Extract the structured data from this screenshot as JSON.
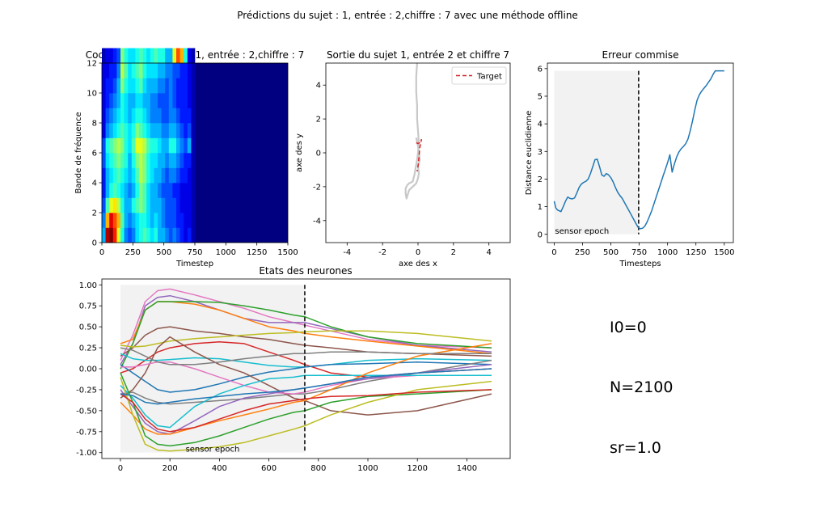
{
  "suptitle": "Prédictions du sujet : 1, entrée : 2,chiffre : 7 avec une méthode offline",
  "chart_data": [
    {
      "id": "cochleogram",
      "type": "heatmap",
      "title": "Cocleogram du sujet : 1, entrée : 2,chiffre : 7",
      "xlabel": "Timestep",
      "ylabel": "Bande de fréquence",
      "xlim": [
        0,
        1500
      ],
      "ylim": [
        0,
        12
      ],
      "xticks": [
        0,
        250,
        500,
        750,
        1000,
        1250,
        1500
      ],
      "yticks": [
        0,
        2,
        4,
        6,
        8,
        10,
        12
      ],
      "colormap": "jet",
      "time_bins": [
        0,
        30,
        60,
        90,
        120,
        150,
        180,
        210,
        240,
        270,
        300,
        330,
        360,
        390,
        420,
        450,
        480,
        510,
        540,
        570,
        600,
        630,
        660,
        690,
        720
      ],
      "bin_width": 30,
      "values": [
        [
          0.3,
          0.95,
          1.0,
          0.85,
          0.6,
          0.4,
          0.25,
          0.2,
          0.25,
          0.35,
          0.4,
          0.45,
          0.4,
          0.35,
          0.4,
          0.3,
          0.3,
          0.25,
          0.2,
          0.25,
          0.2,
          0.15,
          0.1,
          0.15,
          0.05
        ],
        [
          0.25,
          0.7,
          0.9,
          0.8,
          0.7,
          0.45,
          0.3,
          0.25,
          0.3,
          0.35,
          0.4,
          0.4,
          0.35,
          0.3,
          0.35,
          0.3,
          0.25,
          0.2,
          0.2,
          0.2,
          0.15,
          0.15,
          0.1,
          0.1,
          0.05
        ],
        [
          0.2,
          0.45,
          0.6,
          0.65,
          0.55,
          0.4,
          0.3,
          0.3,
          0.4,
          0.45,
          0.5,
          0.45,
          0.35,
          0.3,
          0.3,
          0.3,
          0.25,
          0.2,
          0.2,
          0.2,
          0.15,
          0.1,
          0.1,
          0.1,
          0.05
        ],
        [
          0.15,
          0.3,
          0.4,
          0.45,
          0.4,
          0.35,
          0.3,
          0.25,
          0.3,
          0.4,
          0.5,
          0.45,
          0.35,
          0.3,
          0.3,
          0.25,
          0.2,
          0.2,
          0.2,
          0.15,
          0.15,
          0.1,
          0.1,
          0.1,
          0.05
        ],
        [
          0.15,
          0.3,
          0.35,
          0.4,
          0.45,
          0.4,
          0.35,
          0.3,
          0.35,
          0.45,
          0.55,
          0.5,
          0.4,
          0.35,
          0.3,
          0.3,
          0.25,
          0.2,
          0.25,
          0.25,
          0.2,
          0.15,
          0.15,
          0.1,
          0.05
        ],
        [
          0.2,
          0.35,
          0.4,
          0.45,
          0.5,
          0.45,
          0.4,
          0.3,
          0.4,
          0.5,
          0.55,
          0.5,
          0.4,
          0.35,
          0.35,
          0.3,
          0.3,
          0.25,
          0.3,
          0.3,
          0.25,
          0.2,
          0.15,
          0.15,
          0.05
        ],
        [
          0.2,
          0.4,
          0.45,
          0.5,
          0.55,
          0.5,
          0.4,
          0.35,
          0.45,
          0.6,
          0.6,
          0.55,
          0.45,
          0.4,
          0.4,
          0.35,
          0.3,
          0.3,
          0.4,
          0.4,
          0.3,
          0.25,
          0.2,
          0.3,
          0.05
        ],
        [
          0.1,
          0.25,
          0.3,
          0.35,
          0.4,
          0.45,
          0.4,
          0.35,
          0.4,
          0.5,
          0.45,
          0.4,
          0.35,
          0.3,
          0.3,
          0.3,
          0.25,
          0.25,
          0.3,
          0.3,
          0.25,
          0.2,
          0.15,
          0.2,
          0.05
        ],
        [
          0.1,
          0.2,
          0.25,
          0.3,
          0.35,
          0.4,
          0.35,
          0.3,
          0.35,
          0.4,
          0.4,
          0.35,
          0.3,
          0.25,
          0.25,
          0.25,
          0.2,
          0.2,
          0.25,
          0.25,
          0.2,
          0.15,
          0.15,
          0.15,
          0.05
        ],
        [
          0.1,
          0.15,
          0.2,
          0.25,
          0.3,
          0.4,
          0.35,
          0.3,
          0.3,
          0.35,
          0.35,
          0.3,
          0.3,
          0.25,
          0.25,
          0.2,
          0.2,
          0.2,
          0.25,
          0.2,
          0.15,
          0.15,
          0.15,
          0.1,
          0.05
        ],
        [
          0.1,
          0.15,
          0.15,
          0.2,
          0.3,
          0.5,
          0.4,
          0.35,
          0.35,
          0.4,
          0.45,
          0.35,
          0.3,
          0.3,
          0.3,
          0.25,
          0.25,
          0.2,
          0.25,
          0.2,
          0.15,
          0.15,
          0.15,
          0.1,
          0.05
        ],
        [
          0.1,
          0.1,
          0.15,
          0.15,
          0.25,
          0.55,
          0.45,
          0.35,
          0.4,
          0.45,
          0.5,
          0.4,
          0.35,
          0.35,
          0.35,
          0.3,
          0.3,
          0.25,
          0.25,
          0.2,
          0.2,
          0.15,
          0.15,
          0.1,
          0.05
        ],
        [
          0.05,
          0.1,
          0.1,
          0.15,
          0.2,
          0.5,
          0.4,
          0.35,
          0.35,
          0.4,
          0.45,
          0.4,
          0.35,
          0.4,
          0.45,
          0.4,
          0.4,
          0.3,
          0.3,
          0.6,
          0.8,
          0.7,
          0.4,
          0.1,
          0.05
        ]
      ]
    },
    {
      "id": "output",
      "type": "line",
      "title": "Sortie du sujet 1, entrée 2 et chiffre 7",
      "xlabel": "axe des x",
      "ylabel": "axe des y",
      "xlim": [
        -5.2,
        5.2
      ],
      "ylim": [
        -5.3,
        5.3
      ],
      "xticks": [
        -4,
        -2,
        0,
        2,
        4
      ],
      "yticks": [
        -4,
        -2,
        0,
        2,
        4
      ],
      "legend": "upper-right",
      "target": {
        "name": "Target",
        "color": "#d62728",
        "style": "dashed",
        "x": [
          -0.1,
          0.0,
          0.1,
          0.15,
          0.2,
          0.1,
          0.05,
          0.0,
          -0.05
        ],
        "y": [
          0.6,
          0.55,
          0.6,
          0.7,
          0.8,
          0.3,
          -0.3,
          -0.8,
          -1.1
        ]
      },
      "prediction": {
        "color": "#c8c8c8",
        "x": [
          -0.05,
          -0.1,
          -0.1,
          -0.05,
          -0.05,
          0.0,
          0.05,
          0.0,
          -0.05,
          -0.1,
          -0.15,
          -0.2,
          -0.25,
          -0.3,
          -0.5,
          -0.6,
          -0.7,
          -0.7,
          -0.65,
          -0.5,
          -0.3,
          -0.1,
          0.0,
          0.05,
          0.0,
          0.1,
          0.05,
          0.0,
          -0.1
        ],
        "y": [
          5.3,
          4.5,
          3.6,
          2.8,
          2.0,
          1.3,
          0.6,
          0.0,
          -0.4,
          -0.7,
          -1.0,
          -1.3,
          -1.5,
          -1.7,
          -1.8,
          -1.9,
          -2.1,
          -2.4,
          -2.7,
          -2.2,
          -2.0,
          -1.8,
          -1.5,
          -1.2,
          -0.8,
          -0.4,
          0.0,
          0.4,
          0.9
        ]
      }
    },
    {
      "id": "error",
      "type": "line",
      "title": "Erreur commise",
      "xlabel": "Timesteps",
      "ylabel": "Distance euclidienne",
      "xlim": [
        -60,
        1580
      ],
      "ylim": [
        -0.3,
        6.2
      ],
      "xticks": [
        0,
        250,
        500,
        750,
        1000,
        1250,
        1500
      ],
      "yticks": [
        0,
        1,
        2,
        3,
        4,
        5,
        6
      ],
      "color": "#1f77b4",
      "sensor_epoch": {
        "x_end": 745,
        "label": "sensor epoch"
      },
      "x": [
        0,
        15,
        30,
        45,
        60,
        80,
        100,
        120,
        140,
        160,
        180,
        200,
        220,
        240,
        260,
        280,
        300,
        320,
        340,
        360,
        380,
        400,
        420,
        440,
        460,
        480,
        500,
        520,
        540,
        560,
        580,
        600,
        620,
        640,
        660,
        680,
        700,
        720,
        740,
        760,
        780,
        800,
        820,
        840,
        860,
        880,
        900,
        920,
        940,
        960,
        980,
        1000,
        1020,
        1040,
        1060,
        1080,
        1100,
        1120,
        1140,
        1160,
        1180,
        1200,
        1220,
        1240,
        1260,
        1280,
        1300,
        1320,
        1340,
        1360,
        1380,
        1400,
        1420,
        1440,
        1460,
        1480,
        1500
      ],
      "values": [
        1.2,
        0.95,
        0.88,
        0.85,
        0.82,
        1.0,
        1.2,
        1.35,
        1.3,
        1.28,
        1.32,
        1.5,
        1.7,
        1.82,
        1.88,
        1.92,
        2.0,
        2.2,
        2.45,
        2.7,
        2.72,
        2.45,
        2.15,
        2.1,
        2.2,
        2.15,
        2.05,
        1.9,
        1.7,
        1.52,
        1.4,
        1.3,
        1.15,
        1.0,
        0.85,
        0.7,
        0.55,
        0.4,
        0.25,
        0.2,
        0.22,
        0.3,
        0.45,
        0.65,
        0.85,
        1.1,
        1.35,
        1.6,
        1.85,
        2.1,
        2.35,
        2.6,
        2.88,
        2.25,
        2.55,
        2.8,
        2.98,
        3.1,
        3.18,
        3.28,
        3.45,
        3.75,
        4.1,
        4.5,
        4.85,
        5.05,
        5.18,
        5.28,
        5.38,
        5.5,
        5.62,
        5.78,
        5.92,
        5.92,
        5.92,
        5.92,
        5.92
      ]
    },
    {
      "id": "neurons",
      "type": "line",
      "title": "Etats des neurones",
      "xlim": [
        -75,
        1575
      ],
      "ylim": [
        -1.07,
        1.07
      ],
      "xticks": [
        0,
        200,
        400,
        600,
        800,
        1000,
        1200,
        1400
      ],
      "yticks": [
        -1.0,
        -0.75,
        -0.5,
        -0.25,
        0.0,
        0.25,
        0.5,
        0.75,
        1.0
      ],
      "sensor_epoch": {
        "x_end": 745,
        "label": "sensor epoch"
      },
      "x": [
        0,
        50,
        100,
        150,
        200,
        300,
        400,
        500,
        600,
        700,
        745,
        850,
        1000,
        1200,
        1500
      ],
      "series": [
        {
          "color": "#e377c2",
          "values": [
            0.1,
            0.4,
            0.8,
            0.93,
            0.95,
            0.88,
            0.8,
            0.72,
            0.62,
            0.55,
            0.52,
            0.45,
            0.35,
            0.28,
            0.25
          ]
        },
        {
          "color": "#9467bd",
          "values": [
            0.05,
            0.3,
            0.75,
            0.85,
            0.87,
            0.8,
            0.7,
            0.6,
            0.55,
            0.55,
            0.55,
            0.48,
            0.38,
            0.28,
            0.2
          ]
        },
        {
          "color": "#ff7f0e",
          "values": [
            0.3,
            0.35,
            0.7,
            0.8,
            0.8,
            0.77,
            0.7,
            0.6,
            0.5,
            0.45,
            0.42,
            0.38,
            0.33,
            0.27,
            0.18
          ]
        },
        {
          "color": "#2ca02c",
          "values": [
            0.0,
            0.3,
            0.7,
            0.8,
            0.8,
            0.8,
            0.79,
            0.75,
            0.7,
            0.64,
            0.62,
            0.5,
            0.38,
            0.3,
            0.25
          ]
        },
        {
          "color": "#8c564b",
          "values": [
            0.15,
            0.25,
            0.4,
            0.48,
            0.5,
            0.45,
            0.42,
            0.38,
            0.35,
            0.3,
            0.28,
            0.25,
            0.2,
            0.18,
            0.15
          ]
        },
        {
          "color": "#bcbd22",
          "values": [
            0.28,
            0.26,
            0.27,
            0.3,
            0.33,
            0.36,
            0.38,
            0.4,
            0.42,
            0.43,
            0.44,
            0.45,
            0.45,
            0.42,
            0.33
          ]
        },
        {
          "color": "#d62728",
          "values": [
            -0.05,
            0.0,
            0.1,
            0.2,
            0.25,
            0.3,
            0.32,
            0.3,
            0.2,
            0.1,
            0.05,
            -0.05,
            -0.1,
            -0.05,
            0.0
          ]
        },
        {
          "color": "#17becf",
          "values": [
            0.18,
            0.12,
            0.1,
            0.1,
            0.11,
            0.13,
            0.12,
            0.08,
            0.04,
            0.02,
            0.02,
            0.05,
            0.1,
            0.12,
            0.1
          ]
        },
        {
          "color": "#1f77b4",
          "values": [
            0.05,
            -0.05,
            -0.15,
            -0.25,
            -0.28,
            -0.25,
            -0.18,
            -0.1,
            -0.04,
            0.0,
            0.02,
            0.05,
            0.06,
            0.08,
            0.05
          ]
        },
        {
          "color": "#7f7f7f",
          "values": [
            -0.3,
            -0.28,
            -0.35,
            -0.4,
            -0.42,
            -0.4,
            -0.38,
            -0.36,
            -0.33,
            -0.3,
            -0.3,
            -0.25,
            -0.15,
            -0.05,
            0.1
          ]
        },
        {
          "color": "#8c564b",
          "values": [
            -0.35,
            -0.25,
            -0.05,
            0.25,
            0.38,
            0.2,
            0.05,
            -0.05,
            -0.2,
            -0.35,
            -0.38,
            -0.5,
            -0.55,
            -0.5,
            -0.3
          ]
        },
        {
          "color": "#e377c2",
          "values": [
            0.02,
            0.02,
            0.05,
            0.08,
            0.08,
            0.0,
            -0.1,
            -0.2,
            -0.28,
            -0.3,
            -0.28,
            -0.2,
            -0.12,
            -0.08,
            -0.08
          ]
        },
        {
          "color": "#17becf",
          "values": [
            -0.2,
            -0.35,
            -0.55,
            -0.68,
            -0.7,
            -0.45,
            -0.3,
            -0.2,
            -0.12,
            -0.1,
            -0.08,
            -0.08,
            -0.08,
            -0.08,
            -0.08
          ]
        },
        {
          "color": "#9467bd",
          "values": [
            -0.25,
            -0.45,
            -0.65,
            -0.75,
            -0.78,
            -0.62,
            -0.45,
            -0.35,
            -0.3,
            -0.25,
            -0.23,
            -0.18,
            -0.12,
            -0.05,
            0.05
          ]
        },
        {
          "color": "#ff7f0e",
          "values": [
            -0.4,
            -0.55,
            -0.72,
            -0.78,
            -0.78,
            -0.7,
            -0.62,
            -0.55,
            -0.48,
            -0.4,
            -0.38,
            -0.25,
            -0.05,
            0.15,
            0.3
          ]
        },
        {
          "color": "#2ca02c",
          "values": [
            -0.05,
            -0.4,
            -0.8,
            -0.9,
            -0.92,
            -0.88,
            -0.8,
            -0.7,
            -0.6,
            -0.52,
            -0.5,
            -0.4,
            -0.33,
            -0.3,
            -0.25
          ]
        },
        {
          "color": "#bcbd22",
          "values": [
            -0.1,
            -0.55,
            -0.9,
            -0.97,
            -0.98,
            -0.96,
            -0.93,
            -0.88,
            -0.8,
            -0.72,
            -0.68,
            -0.55,
            -0.4,
            -0.25,
            -0.15
          ]
        },
        {
          "color": "#d62728",
          "values": [
            -0.3,
            -0.4,
            -0.6,
            -0.72,
            -0.75,
            -0.7,
            -0.6,
            -0.5,
            -0.42,
            -0.38,
            -0.36,
            -0.33,
            -0.32,
            -0.28,
            -0.25
          ]
        },
        {
          "color": "#1f77b4",
          "values": [
            -0.3,
            -0.32,
            -0.4,
            -0.42,
            -0.4,
            -0.36,
            -0.33,
            -0.3,
            -0.28,
            -0.25,
            -0.23,
            -0.18,
            -0.1,
            -0.05,
            0.0
          ]
        },
        {
          "color": "#7f7f7f",
          "values": [
            0.25,
            0.22,
            0.15,
            0.08,
            0.05,
            0.05,
            0.08,
            0.12,
            0.15,
            0.18,
            0.18,
            0.2,
            0.2,
            0.18,
            0.18
          ]
        }
      ]
    }
  ],
  "parameters": [
    "I0=0",
    "N=2100",
    "sr=1.0"
  ]
}
